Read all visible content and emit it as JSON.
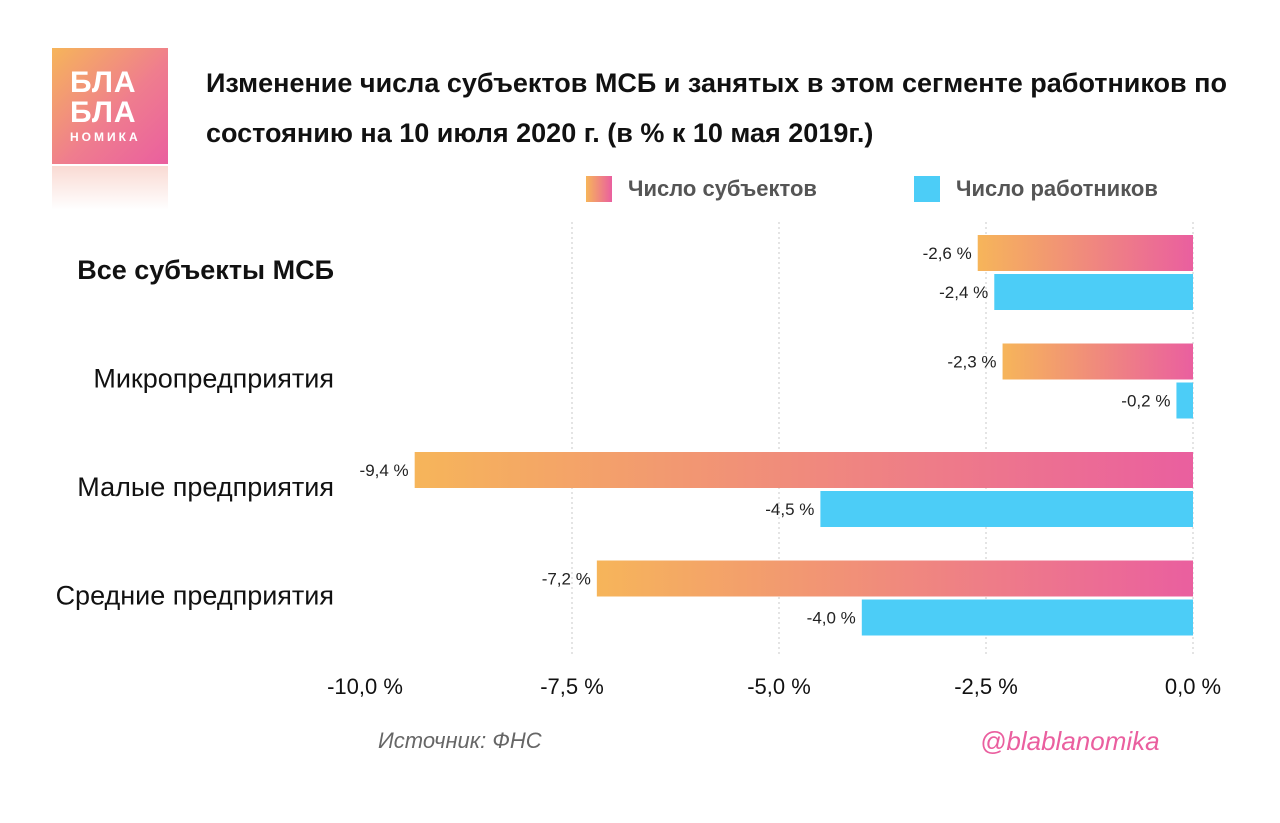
{
  "logo": {
    "line1": "БЛА",
    "line2": "БЛА",
    "line3": "НОМИКА"
  },
  "title": "Изменение числа субъектов МСБ и занятых в этом сегменте работников по состоянию на 10 июля 2020 г. (в % к 10 мая 2019г.)",
  "source": "Источник: ФНС",
  "handle": "@blablanomika",
  "colors": {
    "series1_start": "#f6b55a",
    "series1_end": "#ea5f9f",
    "series2": "#4ccdf7"
  },
  "chart_data": {
    "type": "bar",
    "orientation": "horizontal",
    "categories": [
      "Все субъекты МСБ",
      "Микропредприятия",
      "Малые предприятия",
      "Средние предприятия"
    ],
    "category_bold": [
      true,
      false,
      false,
      false
    ],
    "series": [
      {
        "name": "Число субъектов",
        "values": [
          -2.6,
          -2.3,
          -9.4,
          -7.2
        ],
        "labels": [
          "-2,6 %",
          "-2,3 %",
          "-9,4 %",
          "-7,2 %"
        ]
      },
      {
        "name": "Число работников",
        "values": [
          -2.4,
          -0.2,
          -4.5,
          -4.0
        ],
        "labels": [
          "-2,4 %",
          "-0,2 %",
          "-4,5 %",
          "-4,0 %"
        ]
      }
    ],
    "xlim": [
      -10,
      0
    ],
    "ticks": [
      -10,
      -7.5,
      -5,
      -2.5,
      0
    ],
    "tick_labels": [
      "-10,0 %",
      "-7,5 %",
      "-5,0 %",
      "-2,5 %",
      "0,0 %"
    ],
    "grid": true,
    "legend_position": "top-right"
  }
}
